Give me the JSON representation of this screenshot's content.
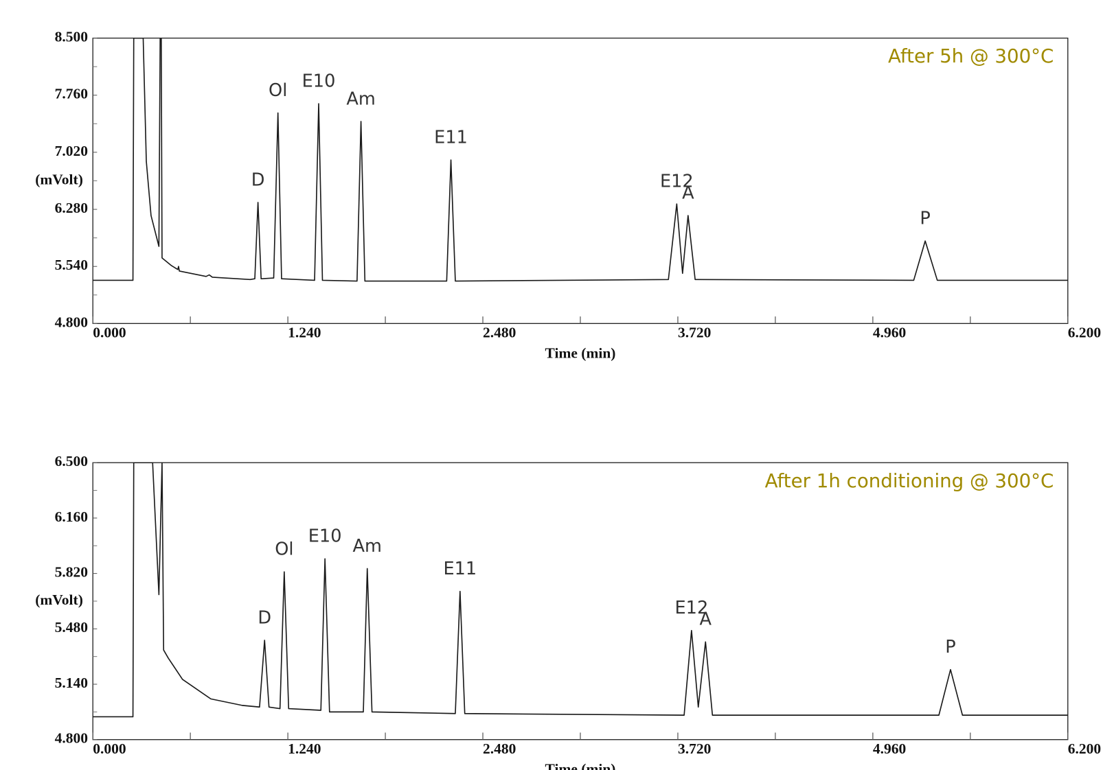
{
  "chart_data": [
    {
      "type": "line",
      "title": "After 5h @ 300°C",
      "title_color": "#a08a00",
      "xlabel": "Time (min)",
      "ylabel": "(mVolt)",
      "xlim": [
        0,
        6.2
      ],
      "xticks": [
        {
          "value": 0,
          "label": "0.000"
        },
        {
          "value": 1.24,
          "label": "1.240"
        },
        {
          "value": 2.48,
          "label": "2.480"
        },
        {
          "value": 3.72,
          "label": "3.720"
        },
        {
          "value": 4.96,
          "label": "4.960"
        },
        {
          "value": 6.2,
          "label": "6.200"
        }
      ],
      "ylim": [
        4.8,
        8.5
      ],
      "yticks": [
        {
          "value": 4.8,
          "label": "4.800"
        },
        {
          "value": 5.54,
          "label": "5.540"
        },
        {
          "value": 6.28,
          "label": "6.280"
        },
        {
          "value": 7.02,
          "label": "7.020"
        },
        {
          "value": 7.76,
          "label": "7.760"
        },
        {
          "value": 8.5,
          "label": "8.500"
        }
      ],
      "x": [
        0,
        0.255,
        0.26,
        0.32,
        0.34,
        0.37,
        0.42,
        0.428,
        0.435,
        0.44,
        0.5,
        0.54,
        0.545,
        0.55,
        0.72,
        0.74,
        0.76,
        1.0,
        1.03,
        1.05,
        1.07,
        1.15,
        1.177,
        1.2,
        1.41,
        1.436,
        1.46,
        1.68,
        1.705,
        1.73,
        2.25,
        2.277,
        2.305,
        3.66,
        3.713,
        3.75,
        3.785,
        3.83,
        5.22,
        5.293,
        5.37,
        6.2
      ],
      "series": [
        {
          "color": "#1a1a1a",
          "values": [
            5.36,
            5.36,
            8.5,
            8.5,
            6.9,
            6.2,
            5.8,
            8.5,
            8.5,
            5.65,
            5.55,
            5.5,
            5.54,
            5.48,
            5.41,
            5.43,
            5.4,
            5.37,
            5.38,
            6.37,
            5.38,
            5.39,
            7.53,
            5.38,
            5.36,
            7.65,
            5.36,
            5.35,
            7.42,
            5.35,
            5.35,
            6.92,
            5.35,
            5.37,
            6.35,
            5.45,
            6.2,
            5.37,
            5.36,
            5.87,
            5.36,
            5.36
          ]
        }
      ],
      "annotations": [
        {
          "text": "D",
          "x": 1.05
        },
        {
          "text": "Ol",
          "x": 1.177
        },
        {
          "text": "E10",
          "x": 1.436
        },
        {
          "text": "Am",
          "x": 1.705
        },
        {
          "text": "E11",
          "x": 2.277
        },
        {
          "text": "E12",
          "x": 3.713
        },
        {
          "text": "A",
          "x": 3.785
        },
        {
          "text": "P",
          "x": 5.293
        }
      ]
    },
    {
      "type": "line",
      "title": "After 1h conditioning @ 300°C",
      "title_color": "#a08a00",
      "xlabel": "Time (min)",
      "ylabel": "(mVolt)",
      "xlim": [
        0,
        6.2
      ],
      "xticks": [
        {
          "value": 0,
          "label": "0.000"
        },
        {
          "value": 1.24,
          "label": "1.240"
        },
        {
          "value": 2.48,
          "label": "2.480"
        },
        {
          "value": 3.72,
          "label": "3.720"
        },
        {
          "value": 4.96,
          "label": "4.960"
        },
        {
          "value": 6.2,
          "label": "6.200"
        }
      ],
      "ylim": [
        4.8,
        6.5
      ],
      "yticks": [
        {
          "value": 4.8,
          "label": "4.800"
        },
        {
          "value": 5.14,
          "label": "5.140"
        },
        {
          "value": 5.48,
          "label": "5.480"
        },
        {
          "value": 5.82,
          "label": "5.820"
        },
        {
          "value": 6.16,
          "label": "6.160"
        },
        {
          "value": 6.5,
          "label": "6.500"
        }
      ],
      "x": [
        0,
        0.255,
        0.26,
        0.38,
        0.42,
        0.44,
        0.45,
        0.48,
        0.57,
        0.75,
        0.95,
        1.06,
        1.092,
        1.12,
        1.19,
        1.217,
        1.245,
        1.45,
        1.476,
        1.505,
        1.72,
        1.745,
        1.775,
        2.305,
        2.335,
        2.365,
        3.76,
        3.807,
        3.85,
        3.896,
        3.94,
        5.38,
        5.454,
        5.53,
        6.2
      ],
      "series": [
        {
          "color": "#1a1a1a",
          "values": [
            4.94,
            4.94,
            6.5,
            6.5,
            5.69,
            6.5,
            5.35,
            5.3,
            5.17,
            5.05,
            5.01,
            5.0,
            5.41,
            5.0,
            4.99,
            5.83,
            4.99,
            4.98,
            5.91,
            4.97,
            4.97,
            5.85,
            4.97,
            4.96,
            5.71,
            4.96,
            4.95,
            5.47,
            5.0,
            5.4,
            4.95,
            4.95,
            5.23,
            4.95,
            4.95
          ]
        }
      ],
      "annotations": [
        {
          "text": "D",
          "x": 1.092
        },
        {
          "text": "Ol",
          "x": 1.217
        },
        {
          "text": "E10",
          "x": 1.476
        },
        {
          "text": "Am",
          "x": 1.745
        },
        {
          "text": "E11",
          "x": 2.335
        },
        {
          "text": "E12",
          "x": 3.807
        },
        {
          "text": "A",
          "x": 3.896
        },
        {
          "text": "P",
          "x": 5.454
        }
      ]
    }
  ]
}
